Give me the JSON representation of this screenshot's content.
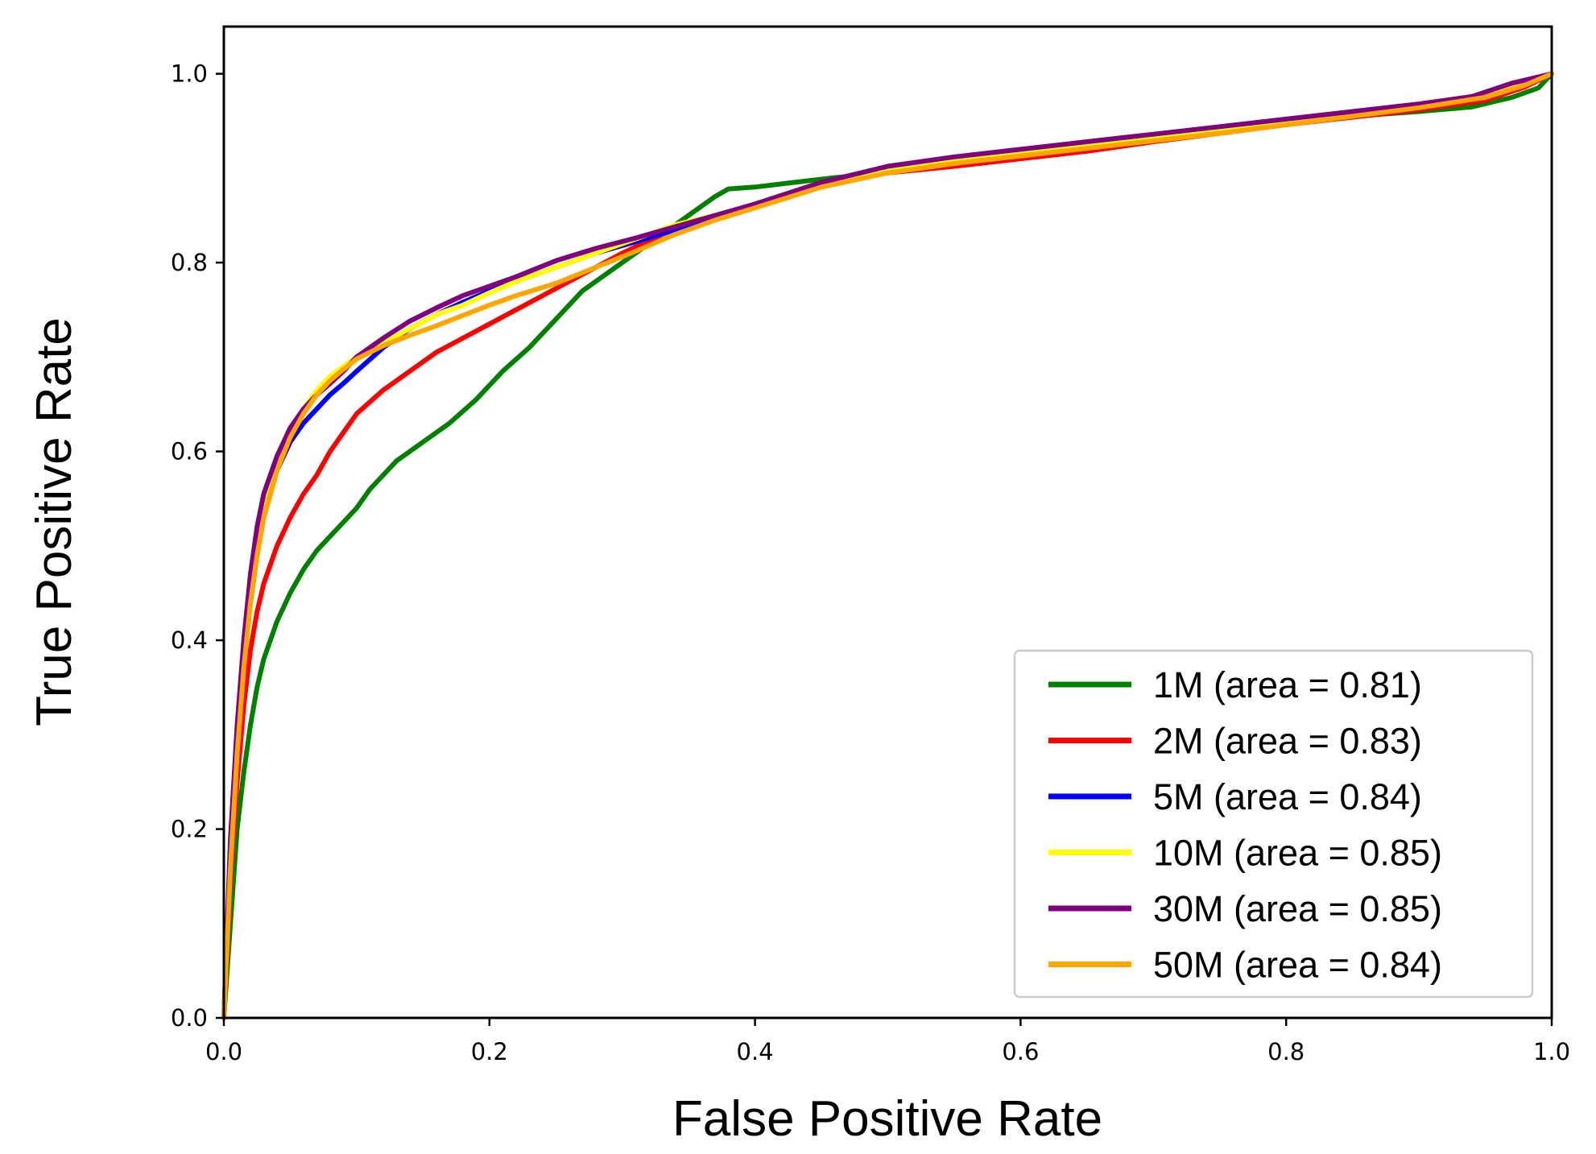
{
  "chart_data": {
    "type": "line",
    "title": "",
    "xlabel": "False Positive Rate",
    "ylabel": "True Positive Rate",
    "xlim": [
      0.0,
      1.0
    ],
    "ylim": [
      0.0,
      1.05
    ],
    "xticks": [
      0.0,
      0.2,
      0.4,
      0.6,
      0.8,
      1.0
    ],
    "yticks": [
      0.0,
      0.2,
      0.4,
      0.6,
      0.8,
      1.0
    ],
    "xtick_labels": [
      "0.0",
      "0.2",
      "0.4",
      "0.6",
      "0.8",
      "1.0"
    ],
    "ytick_labels": [
      "0.0",
      "0.2",
      "0.4",
      "0.6",
      "0.8",
      "1.0"
    ],
    "grid": false,
    "legend_position": "bottom-right",
    "series": [
      {
        "name": "1M (area = 0.81)",
        "color": "#008000",
        "x": [
          0.0,
          0.005,
          0.01,
          0.015,
          0.02,
          0.025,
          0.03,
          0.04,
          0.05,
          0.06,
          0.07,
          0.08,
          0.09,
          0.1,
          0.11,
          0.12,
          0.13,
          0.14,
          0.15,
          0.17,
          0.19,
          0.21,
          0.23,
          0.25,
          0.27,
          0.29,
          0.31,
          0.33,
          0.35,
          0.37,
          0.38,
          0.4,
          0.43,
          0.46,
          0.5,
          0.55,
          0.6,
          0.65,
          0.7,
          0.75,
          0.8,
          0.85,
          0.9,
          0.94,
          0.97,
          0.99,
          1.0
        ],
        "y": [
          0.0,
          0.1,
          0.2,
          0.26,
          0.31,
          0.35,
          0.38,
          0.42,
          0.45,
          0.475,
          0.495,
          0.51,
          0.525,
          0.54,
          0.56,
          0.575,
          0.59,
          0.6,
          0.61,
          0.63,
          0.655,
          0.685,
          0.71,
          0.74,
          0.77,
          0.79,
          0.81,
          0.83,
          0.85,
          0.87,
          0.878,
          0.88,
          0.885,
          0.89,
          0.895,
          0.905,
          0.912,
          0.92,
          0.93,
          0.94,
          0.948,
          0.955,
          0.96,
          0.965,
          0.975,
          0.985,
          1.0
        ]
      },
      {
        "name": "2M (area = 0.83)",
        "color": "#ff0000",
        "x": [
          0.0,
          0.005,
          0.01,
          0.015,
          0.02,
          0.025,
          0.03,
          0.04,
          0.05,
          0.06,
          0.07,
          0.08,
          0.09,
          0.1,
          0.12,
          0.14,
          0.16,
          0.18,
          0.2,
          0.22,
          0.24,
          0.26,
          0.28,
          0.3,
          0.33,
          0.36,
          0.4,
          0.45,
          0.5,
          0.55,
          0.6,
          0.65,
          0.7,
          0.75,
          0.8,
          0.85,
          0.9,
          0.95,
          0.98,
          1.0
        ],
        "y": [
          0.0,
          0.15,
          0.25,
          0.33,
          0.39,
          0.43,
          0.46,
          0.5,
          0.53,
          0.555,
          0.575,
          0.6,
          0.62,
          0.64,
          0.665,
          0.685,
          0.705,
          0.72,
          0.735,
          0.75,
          0.765,
          0.78,
          0.795,
          0.81,
          0.83,
          0.845,
          0.86,
          0.885,
          0.895,
          0.902,
          0.91,
          0.918,
          0.928,
          0.937,
          0.946,
          0.954,
          0.962,
          0.972,
          0.986,
          1.0
        ]
      },
      {
        "name": "5M (area = 0.84)",
        "color": "#0000ff",
        "x": [
          0.0,
          0.005,
          0.01,
          0.015,
          0.02,
          0.025,
          0.03,
          0.04,
          0.05,
          0.06,
          0.07,
          0.08,
          0.09,
          0.1,
          0.12,
          0.14,
          0.16,
          0.18,
          0.2,
          0.22,
          0.25,
          0.28,
          0.31,
          0.34,
          0.37,
          0.4,
          0.45,
          0.5,
          0.55,
          0.6,
          0.65,
          0.7,
          0.75,
          0.8,
          0.85,
          0.9,
          0.95,
          0.98,
          1.0
        ],
        "y": [
          0.0,
          0.17,
          0.29,
          0.38,
          0.44,
          0.49,
          0.53,
          0.58,
          0.61,
          0.63,
          0.645,
          0.66,
          0.672,
          0.685,
          0.71,
          0.73,
          0.745,
          0.758,
          0.77,
          0.78,
          0.795,
          0.81,
          0.822,
          0.835,
          0.848,
          0.86,
          0.885,
          0.9,
          0.91,
          0.918,
          0.926,
          0.935,
          0.943,
          0.951,
          0.959,
          0.967,
          0.978,
          0.99,
          1.0
        ]
      },
      {
        "name": "10M (area = 0.85)",
        "color": "#ffff00",
        "x": [
          0.0,
          0.005,
          0.01,
          0.015,
          0.02,
          0.025,
          0.03,
          0.04,
          0.05,
          0.06,
          0.07,
          0.08,
          0.09,
          0.1,
          0.12,
          0.14,
          0.16,
          0.18,
          0.2,
          0.22,
          0.25,
          0.28,
          0.31,
          0.34,
          0.37,
          0.4,
          0.45,
          0.5,
          0.55,
          0.6,
          0.65,
          0.7,
          0.75,
          0.8,
          0.85,
          0.9,
          0.95,
          0.98,
          1.0
        ],
        "y": [
          0.0,
          0.18,
          0.3,
          0.39,
          0.45,
          0.5,
          0.54,
          0.59,
          0.62,
          0.645,
          0.665,
          0.68,
          0.69,
          0.7,
          0.715,
          0.73,
          0.745,
          0.755,
          0.768,
          0.78,
          0.795,
          0.81,
          0.825,
          0.84,
          0.85,
          0.862,
          0.885,
          0.9,
          0.91,
          0.918,
          0.926,
          0.934,
          0.942,
          0.95,
          0.958,
          0.967,
          0.978,
          0.99,
          1.0
        ]
      },
      {
        "name": "30M (area = 0.85)",
        "color": "#800080",
        "x": [
          0.0,
          0.005,
          0.01,
          0.015,
          0.02,
          0.025,
          0.03,
          0.04,
          0.05,
          0.06,
          0.07,
          0.08,
          0.09,
          0.1,
          0.12,
          0.14,
          0.16,
          0.18,
          0.2,
          0.22,
          0.25,
          0.28,
          0.31,
          0.34,
          0.37,
          0.4,
          0.45,
          0.5,
          0.55,
          0.6,
          0.65,
          0.7,
          0.75,
          0.8,
          0.85,
          0.9,
          0.94,
          0.97,
          1.0
        ],
        "y": [
          0.0,
          0.19,
          0.31,
          0.4,
          0.47,
          0.52,
          0.555,
          0.595,
          0.625,
          0.645,
          0.66,
          0.672,
          0.685,
          0.7,
          0.72,
          0.738,
          0.752,
          0.765,
          0.775,
          0.785,
          0.802,
          0.815,
          0.826,
          0.838,
          0.85,
          0.862,
          0.885,
          0.902,
          0.912,
          0.92,
          0.928,
          0.936,
          0.944,
          0.952,
          0.96,
          0.968,
          0.976,
          0.99,
          1.0
        ]
      },
      {
        "name": "50M (area = 0.84)",
        "color": "#ffa500",
        "x": [
          0.0,
          0.005,
          0.01,
          0.015,
          0.02,
          0.025,
          0.03,
          0.04,
          0.05,
          0.06,
          0.07,
          0.08,
          0.09,
          0.1,
          0.12,
          0.14,
          0.16,
          0.18,
          0.2,
          0.22,
          0.25,
          0.28,
          0.31,
          0.34,
          0.37,
          0.4,
          0.45,
          0.5,
          0.55,
          0.6,
          0.65,
          0.7,
          0.75,
          0.8,
          0.85,
          0.9,
          0.95,
          0.98,
          1.0
        ],
        "y": [
          0.0,
          0.16,
          0.28,
          0.37,
          0.44,
          0.49,
          0.53,
          0.58,
          0.615,
          0.64,
          0.66,
          0.675,
          0.687,
          0.698,
          0.712,
          0.723,
          0.733,
          0.744,
          0.755,
          0.765,
          0.778,
          0.795,
          0.812,
          0.83,
          0.845,
          0.858,
          0.88,
          0.895,
          0.905,
          0.913,
          0.921,
          0.929,
          0.937,
          0.946,
          0.955,
          0.964,
          0.975,
          0.988,
          1.0
        ]
      }
    ]
  }
}
